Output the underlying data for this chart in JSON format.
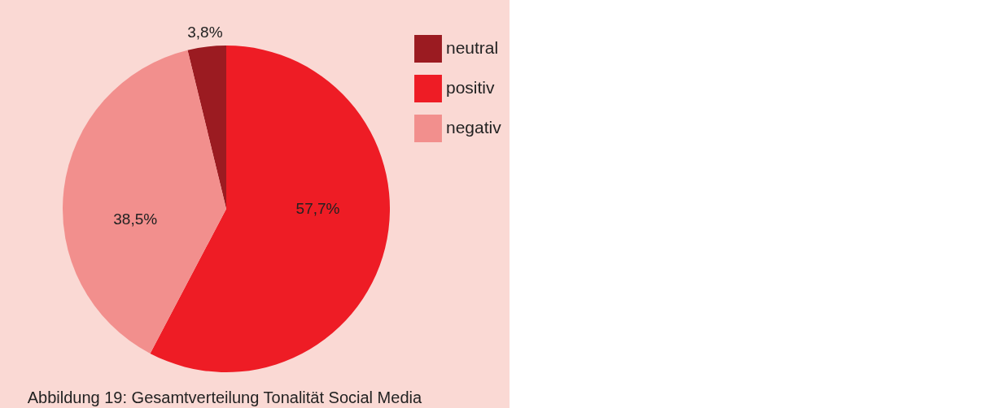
{
  "chart_data": {
    "type": "pie",
    "categories": [
      "neutral",
      "positiv",
      "negativ"
    ],
    "values": [
      3.8,
      57.7,
      38.5
    ],
    "colors": [
      "#9b1b21",
      "#ee1c25",
      "#f28f8d"
    ],
    "value_labels": [
      "3,8%",
      "57,7%",
      "38,5%"
    ],
    "legend": "right",
    "annotations": [
      "Abbildung 19: Gesamtverteilung Tonalität Social Media"
    ]
  }
}
